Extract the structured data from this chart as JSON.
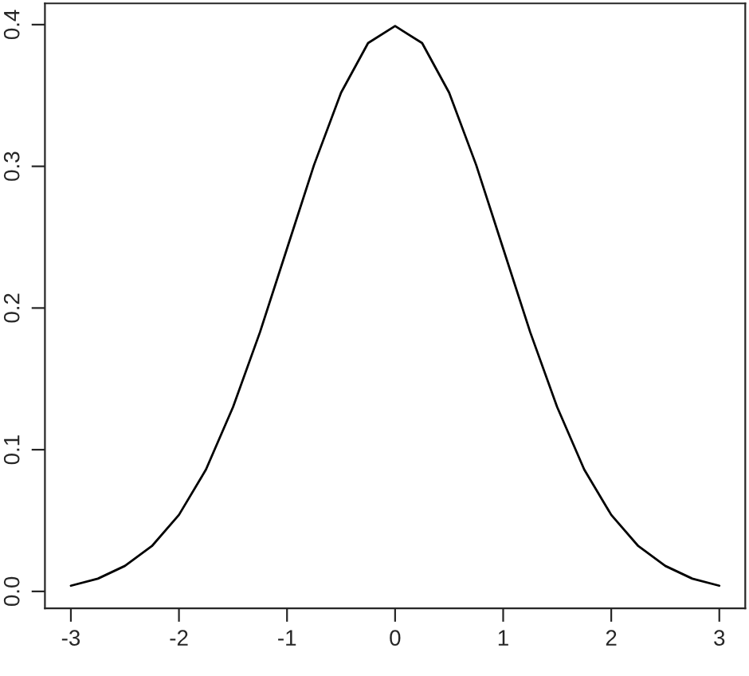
{
  "chart_data": {
    "type": "line",
    "x": [
      -3,
      -2.75,
      -2.5,
      -2.25,
      -2,
      -1.75,
      -1.5,
      -1.25,
      -1,
      -0.75,
      -0.5,
      -0.25,
      0,
      0.25,
      0.5,
      0.75,
      1,
      1.25,
      1.5,
      1.75,
      2,
      2.25,
      2.5,
      2.75,
      3
    ],
    "series": [
      {
        "color": "#000000",
        "values": [
          0.004,
          0.009,
          0.018,
          0.032,
          0.054,
          0.086,
          0.13,
          0.183,
          0.242,
          0.301,
          0.352,
          0.387,
          0.399,
          0.387,
          0.352,
          0.301,
          0.242,
          0.183,
          0.13,
          0.086,
          0.054,
          0.032,
          0.018,
          0.009,
          0.004
        ]
      }
    ],
    "xlim": [
      -3.24,
      3.24
    ],
    "ylim": [
      -0.012,
      0.415
    ],
    "xticks": [
      -3,
      -2,
      -1,
      0,
      1,
      2,
      3
    ],
    "yticks": [
      {
        "value": 0,
        "label": "0.0"
      },
      0.1,
      0.2,
      0.3,
      0.4
    ],
    "grid": false,
    "legend": false,
    "marker": "none",
    "line_style": "solid"
  }
}
